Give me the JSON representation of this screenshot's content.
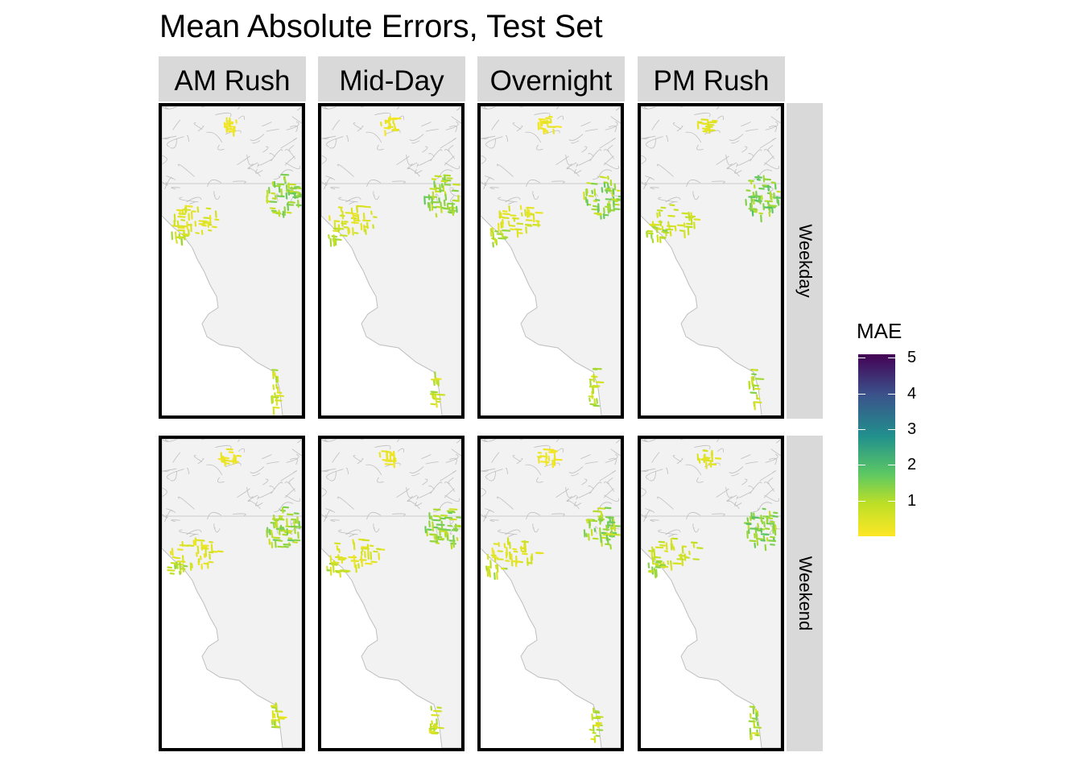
{
  "title": "Mean Absolute Errors, Test Set",
  "facets": {
    "columns": [
      "AM Rush",
      "Mid-Day",
      "Overnight",
      "PM Rush"
    ],
    "rows": [
      "Weekday",
      "Weekend"
    ]
  },
  "legend": {
    "title": "MAE",
    "scale": "viridis",
    "labels": [
      "5",
      "4",
      "3",
      "2",
      "1"
    ],
    "range": [
      0,
      5.1
    ]
  },
  "colors": {
    "basemap_fill": "#f2f2f2",
    "basemap_lines": "#bebebe",
    "strip_background": "#d9d9d9",
    "panel_border": "#000000",
    "low_error": "#fde725",
    "mid_error": "#5dc863",
    "high_error": "#440154"
  }
}
